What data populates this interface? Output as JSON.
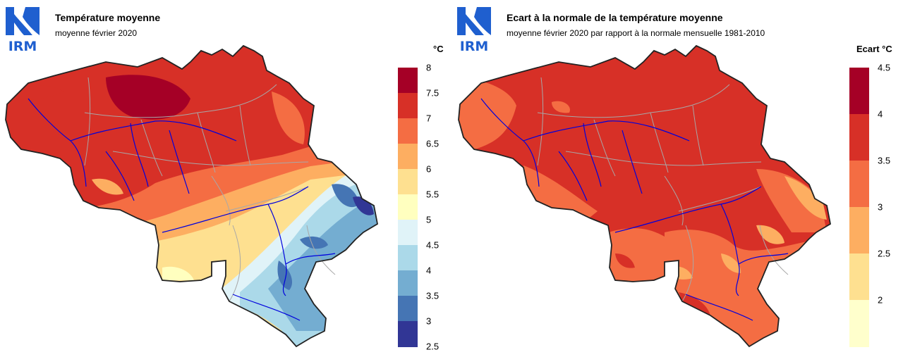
{
  "logo_text": "IRM",
  "panels": [
    {
      "title": "Température moyenne",
      "subtitle": "moyenne février 2020",
      "unit": "°C",
      "legend": {
        "ticks": [
          "8",
          "7.5",
          "7",
          "6.5",
          "6",
          "5.5",
          "5",
          "4.5",
          "4",
          "3.5",
          "3",
          "2.5"
        ],
        "colors": [
          "#a50026",
          "#d73027",
          "#f46d43",
          "#fdae61",
          "#fee090",
          "#ffffbf",
          "#e0f3f8",
          "#abd9e9",
          "#74add1",
          "#4575b4",
          "#313695"
        ]
      }
    },
    {
      "title": "Ecart à la normale de la température moyenne",
      "subtitle": "moyenne février 2020 par rapport à la normale mensuelle 1981-2010",
      "unit": "Ecart  °C",
      "legend": {
        "ticks": [
          "4.5",
          "4",
          "3.5",
          "3",
          "2.5",
          "2"
        ],
        "colors": [
          "#a50026",
          "#d73027",
          "#f46d43",
          "#fdae61",
          "#fee090",
          "#ffffcc"
        ]
      }
    }
  ],
  "colors": {
    "logo_blue": "#1f5fcf",
    "country_border": "#222222",
    "province_border": "#a8a8a8",
    "river": "#0000dd"
  }
}
